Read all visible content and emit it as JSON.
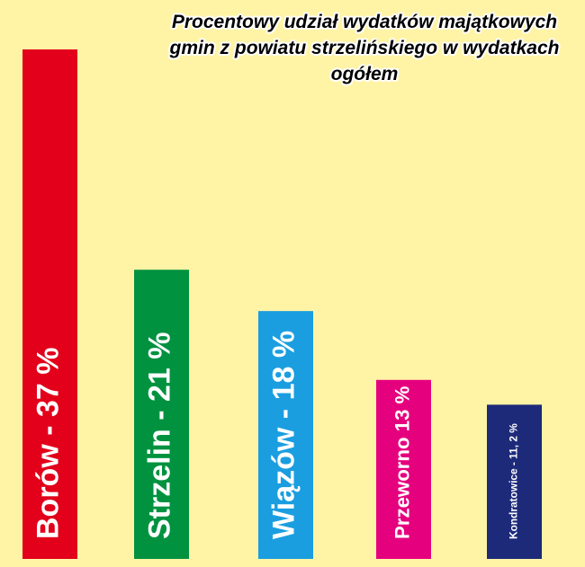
{
  "chart_data": {
    "type": "bar",
    "title": "Procentowy udział wydatków majątkowych gmin z powiatu strzelińskiego w wydatkach ogółem",
    "values": [
      37,
      21,
      18,
      13,
      11.2
    ],
    "value_labels": [
      "Borów - 37 %",
      "Strzelin - 21 %",
      "Wiązów - 18 %",
      "Przeworno 13 %",
      "Kondratowice - 11, 2 %"
    ],
    "colors": [
      "#e2001a",
      "#00923f",
      "#1a9ee0",
      "#e5007e",
      "#1d2a7a"
    ]
  }
}
